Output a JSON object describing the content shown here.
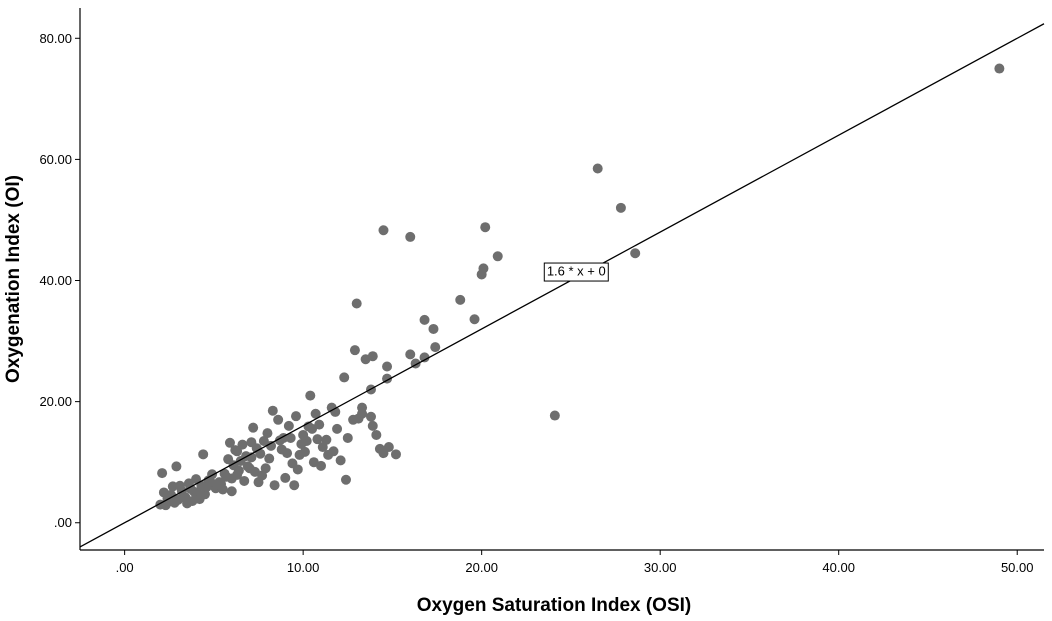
{
  "chart_data": {
    "type": "scatter",
    "xlabel": "Oxygen Saturation Index (OSI)",
    "ylabel": "Oxygenation Index (OI)",
    "xlim": [
      -2.5,
      51.5
    ],
    "ylim": [
      -4.5,
      85
    ],
    "x_ticks": [
      0,
      10,
      20,
      30,
      40,
      50
    ],
    "x_tick_labels": [
      ".00",
      "10.00",
      "20.00",
      "30.00",
      "40.00",
      "50.00"
    ],
    "y_ticks": [
      0,
      20,
      40,
      60,
      80
    ],
    "y_tick_labels": [
      ".00",
      "20.00",
      "40.00",
      "60.00",
      "80.00"
    ],
    "grid": false,
    "marker_color": "#6e6e6e",
    "line_color": "#000000",
    "fit_line": {
      "slope": 1.6,
      "intercept": 0,
      "label": "1.6 * x + 0",
      "label_at": [
        25.3,
        41.4
      ]
    },
    "series": [
      {
        "x": [
          49.0,
          26.5,
          27.8,
          28.6,
          14.5,
          16.0,
          20.2,
          20.9,
          20.1,
          20.0,
          24.1,
          13.0,
          18.8,
          19.6,
          16.8,
          17.3,
          17.4,
          12.9,
          16.0,
          16.3,
          16.8,
          13.5,
          13.9,
          14.7,
          12.3,
          13.8,
          14.7,
          13.3,
          13.3,
          13.8,
          12.8,
          14.1,
          14.5,
          14.8,
          15.2,
          14.3,
          13.9,
          11.8,
          11.9,
          12.5,
          11.3,
          11.6,
          10.4,
          10.7,
          10.9,
          10.5,
          10.2,
          11.1,
          10.6,
          9.6,
          9.2,
          8.9,
          9.9,
          9.8,
          9.4,
          9.5,
          8.3,
          8.6,
          8.0,
          7.8,
          7.4,
          7.2,
          7.6,
          7.1,
          6.6,
          6.3,
          6.8,
          6.9,
          6.4,
          6.1,
          5.8,
          5.6,
          6.0,
          5.3,
          5.1,
          5.5,
          4.7,
          4.4,
          4.9,
          4.3,
          4.5,
          4.0,
          3.6,
          3.2,
          2.9,
          3.3,
          2.7,
          2.2,
          2.1,
          2.5,
          2.4,
          2.0,
          3.5,
          3.9,
          4.1,
          3.0,
          2.8,
          5.9,
          6.2,
          6.5,
          7.0,
          7.7,
          8.1,
          8.8,
          9.1,
          10.0,
          10.8,
          11.4,
          12.1,
          12.4,
          9.7,
          8.4,
          7.3,
          6.7,
          5.7,
          5.2,
          4.6,
          3.8,
          3.4,
          2.6,
          11.0,
          10.1,
          9.0,
          8.7,
          7.9,
          7.5,
          6.0,
          5.4,
          4.8,
          4.2,
          3.7,
          3.1,
          2.3,
          6.3,
          7.1,
          8.2,
          9.3,
          10.3,
          11.7,
          13.1
        ],
        "y": [
          75.0,
          58.5,
          52.0,
          44.5,
          48.3,
          47.2,
          48.8,
          44.0,
          42.0,
          41.0,
          17.7,
          36.2,
          36.8,
          33.6,
          33.5,
          32.0,
          29.0,
          28.5,
          27.8,
          26.3,
          27.3,
          27.0,
          27.5,
          25.8,
          24.0,
          22.0,
          23.8,
          19.0,
          18.0,
          17.5,
          17.0,
          14.5,
          11.5,
          12.5,
          11.3,
          12.2,
          16.0,
          18.3,
          15.5,
          14.0,
          13.7,
          19.0,
          21.0,
          18.0,
          16.2,
          15.5,
          13.5,
          12.5,
          10.0,
          17.6,
          16.0,
          14.0,
          13.0,
          11.2,
          9.8,
          6.2,
          18.5,
          17.0,
          14.8,
          13.5,
          12.3,
          15.7,
          11.4,
          13.3,
          12.9,
          11.8,
          11.0,
          9.3,
          8.6,
          9.5,
          10.5,
          8.1,
          7.3,
          6.7,
          5.7,
          5.5,
          7.0,
          11.3,
          8.0,
          6.1,
          4.7,
          7.2,
          6.5,
          5.3,
          9.3,
          4.4,
          6.0,
          5.0,
          8.2,
          3.5,
          4.0,
          3.0,
          3.2,
          5.1,
          4.8,
          3.8,
          3.3,
          13.2,
          12.0,
          10.2,
          9.0,
          7.8,
          10.6,
          12.1,
          11.5,
          14.5,
          13.8,
          11.2,
          10.3,
          7.1,
          8.8,
          6.2,
          8.4,
          6.9,
          7.6,
          6.3,
          5.9,
          3.6,
          4.2,
          4.6,
          9.4,
          11.7,
          7.4,
          13.6,
          9.0,
          6.7,
          5.2,
          6.4,
          6.8,
          3.9,
          5.6,
          6.1,
          2.9,
          7.9,
          10.8,
          12.7,
          14.0,
          15.9,
          11.8,
          17.2
        ]
      }
    ]
  }
}
